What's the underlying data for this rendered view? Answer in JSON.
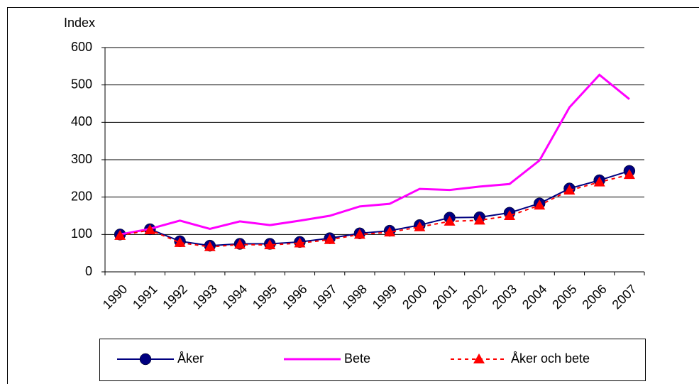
{
  "chart_data": {
    "type": "line",
    "y_label": "Index",
    "categories": [
      "1990",
      "1991",
      "1992",
      "1993",
      "1994",
      "1995",
      "1996",
      "1997",
      "1998",
      "1999",
      "2000",
      "2001",
      "2002",
      "2003",
      "2004",
      "2005",
      "2006",
      "2007"
    ],
    "ylim": [
      0,
      600
    ],
    "yticks": [
      0,
      100,
      200,
      300,
      400,
      500,
      600
    ],
    "grid": true,
    "legend": "bottom",
    "series": [
      {
        "name": "Åker",
        "color": "#000080",
        "marker": "circle",
        "dashed": false,
        "values": [
          100,
          114,
          82,
          70,
          75,
          75,
          80,
          90,
          103,
          110,
          125,
          145,
          146,
          158,
          183,
          223,
          245,
          270
        ]
      },
      {
        "name": "Bete",
        "color": "#ff00ff",
        "marker": "none",
        "dashed": false,
        "values": [
          100,
          115,
          137,
          115,
          135,
          125,
          137,
          150,
          175,
          182,
          222,
          219,
          228,
          235,
          298,
          440,
          527,
          462
        ]
      },
      {
        "name": "Åker och bete",
        "color": "#ff0000",
        "marker": "triangle",
        "dashed": true,
        "values": [
          97,
          112,
          78,
          67,
          73,
          72,
          77,
          86,
          100,
          106,
          120,
          135,
          138,
          150,
          178,
          218,
          240,
          260
        ]
      }
    ]
  }
}
